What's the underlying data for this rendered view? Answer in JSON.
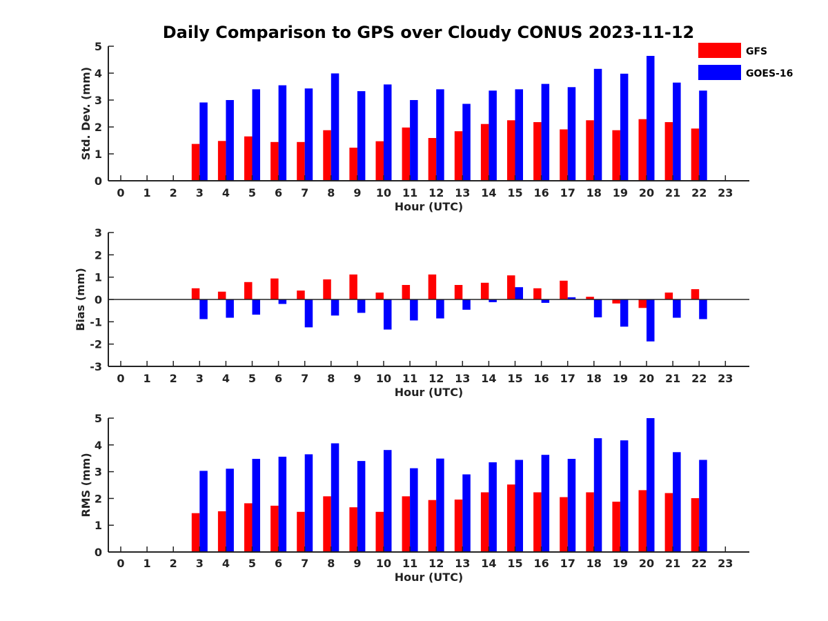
{
  "title": "Daily Comparison to GPS over Cloudy CONUS 2023-11-12",
  "legend": [
    {
      "name": "GFS",
      "color": "#ff0000"
    },
    {
      "name": "GOES-16",
      "color": "#0000ff"
    }
  ],
  "chart_data": [
    {
      "type": "bar",
      "ylabel": "Std. Dev. (mm)",
      "xlabel": "Hour (UTC)",
      "ylim": [
        0,
        5
      ],
      "yticks": [
        0,
        1,
        2,
        3,
        4,
        5
      ],
      "legend_position": "top-right",
      "x": [
        0,
        1,
        2,
        3,
        4,
        5,
        6,
        7,
        8,
        9,
        10,
        11,
        12,
        13,
        14,
        15,
        16,
        17,
        18,
        19,
        20,
        21,
        22,
        23
      ],
      "series": [
        {
          "name": "GFS",
          "values": [
            null,
            null,
            null,
            1.37,
            1.48,
            1.65,
            1.44,
            1.44,
            1.88,
            1.23,
            1.47,
            1.98,
            1.59,
            1.84,
            2.11,
            2.25,
            2.18,
            1.91,
            2.25,
            1.88,
            2.29,
            2.18,
            1.94,
            null
          ]
        },
        {
          "name": "GOES-16",
          "values": [
            null,
            null,
            null,
            2.91,
            3.0,
            3.4,
            3.55,
            3.43,
            3.99,
            3.33,
            3.58,
            3.0,
            3.4,
            2.86,
            3.35,
            3.4,
            3.6,
            3.48,
            4.16,
            3.98,
            4.64,
            3.65,
            3.35,
            null
          ]
        }
      ]
    },
    {
      "type": "bar",
      "ylabel": "Bias (mm)",
      "xlabel": "Hour (UTC)",
      "ylim": [
        -3,
        3
      ],
      "yticks": [
        -3,
        -2,
        -1,
        0,
        1,
        2,
        3
      ],
      "x": [
        0,
        1,
        2,
        3,
        4,
        5,
        6,
        7,
        8,
        9,
        10,
        11,
        12,
        13,
        14,
        15,
        16,
        17,
        18,
        19,
        20,
        21,
        22,
        23
      ],
      "series": [
        {
          "name": "GFS",
          "values": [
            null,
            null,
            null,
            0.5,
            0.35,
            0.78,
            0.94,
            0.4,
            0.9,
            1.12,
            0.31,
            0.65,
            1.12,
            0.65,
            0.75,
            1.08,
            0.5,
            0.84,
            0.12,
            -0.18,
            -0.38,
            0.31,
            0.46,
            null
          ]
        },
        {
          "name": "GOES-16",
          "values": [
            null,
            null,
            null,
            -0.88,
            -0.82,
            -0.68,
            -0.2,
            -1.25,
            -0.72,
            -0.6,
            -1.35,
            -0.94,
            -0.85,
            -0.46,
            -0.12,
            0.55,
            -0.15,
            0.1,
            -0.8,
            -1.22,
            -1.88,
            -0.82,
            -0.88,
            null
          ]
        }
      ]
    },
    {
      "type": "bar",
      "ylabel": "RMS (mm)",
      "xlabel": "Hour (UTC)",
      "ylim": [
        0,
        5
      ],
      "yticks": [
        0,
        1,
        2,
        3,
        4,
        5
      ],
      "x": [
        0,
        1,
        2,
        3,
        4,
        5,
        6,
        7,
        8,
        9,
        10,
        11,
        12,
        13,
        14,
        15,
        16,
        17,
        18,
        19,
        20,
        21,
        22,
        23
      ],
      "series": [
        {
          "name": "GFS",
          "values": [
            null,
            null,
            null,
            1.45,
            1.52,
            1.82,
            1.73,
            1.5,
            2.08,
            1.67,
            1.5,
            2.08,
            1.94,
            1.96,
            2.23,
            2.52,
            2.23,
            2.05,
            2.23,
            1.88,
            2.31,
            2.2,
            2.01,
            null
          ]
        },
        {
          "name": "GOES-16",
          "values": [
            null,
            null,
            null,
            3.03,
            3.11,
            3.48,
            3.56,
            3.65,
            4.06,
            3.4,
            3.81,
            3.13,
            3.49,
            2.9,
            3.35,
            3.44,
            3.63,
            3.48,
            4.25,
            4.17,
            5.0,
            3.73,
            3.44,
            null
          ]
        }
      ]
    }
  ]
}
